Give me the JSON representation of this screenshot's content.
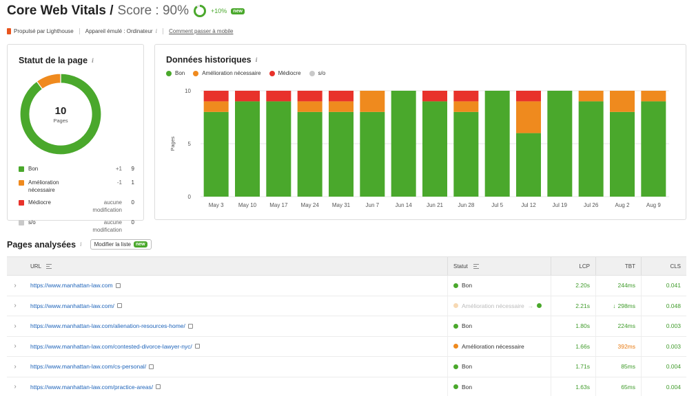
{
  "header": {
    "title": "Core Web Vitals /",
    "score_label": "Score : 90%",
    "score_value": 90,
    "delta": "+10%",
    "new_badge": "new"
  },
  "subbar": {
    "powered": "Propulsé par Lighthouse",
    "device": "Appareil émulé : Ordinateur",
    "info": "i",
    "mobile_link": "Comment passer à mobile"
  },
  "status_card": {
    "title": "Statut de la page",
    "info": "i",
    "total": "10",
    "total_label": "Pages",
    "legend": [
      {
        "label": "Bon",
        "delta": "+1",
        "count": "9",
        "color": "#4aa82c"
      },
      {
        "label": "Amélioration nécessaire",
        "delta": "-1",
        "count": "1",
        "color": "#ef8a1e"
      },
      {
        "label": "Médiocre",
        "delta": "aucune modification",
        "count": "0",
        "color": "#e8322b"
      },
      {
        "label": "s/o",
        "delta": "aucune modification",
        "count": "0",
        "color": "#c9c9c9"
      }
    ]
  },
  "history_card": {
    "title": "Données historiques",
    "info": "i",
    "legend": [
      {
        "label": "Bon",
        "color": "#4aa82c"
      },
      {
        "label": "Amélioration nécessaire",
        "color": "#ef8a1e"
      },
      {
        "label": "Médiocre",
        "color": "#e8322b"
      },
      {
        "label": "s/o",
        "color": "#c9c9c9"
      }
    ]
  },
  "chart_data": {
    "type": "bar",
    "stacked": true,
    "categories": [
      "May 3",
      "May 10",
      "May 17",
      "May 24",
      "May 31",
      "Jun 7",
      "Jun 14",
      "Jun 21",
      "Jun 28",
      "Jul 5",
      "Jul 12",
      "Jul 19",
      "Jul 26",
      "Aug 2",
      "Aug 9"
    ],
    "series": [
      {
        "name": "Bon",
        "color": "#4aa82c",
        "values": [
          8,
          9,
          9,
          8,
          8,
          8,
          10,
          9,
          8,
          10,
          6,
          10,
          9,
          8,
          9
        ]
      },
      {
        "name": "Amélioration nécessaire",
        "color": "#ef8a1e",
        "values": [
          1,
          0,
          0,
          1,
          1,
          2,
          0,
          0,
          1,
          0,
          3,
          0,
          1,
          2,
          1
        ]
      },
      {
        "name": "Médiocre",
        "color": "#e8322b",
        "values": [
          1,
          1,
          1,
          1,
          1,
          0,
          0,
          1,
          1,
          0,
          1,
          0,
          0,
          0,
          0
        ]
      }
    ],
    "ylabel": "Pages",
    "yticks": [
      "0",
      "5",
      "10"
    ],
    "ylim": [
      0,
      10
    ],
    "grid": true
  },
  "pages_section": {
    "title": "Pages analysées",
    "info": "i",
    "edit_button": "Modifier la liste",
    "new_badge": "new"
  },
  "table": {
    "headers": {
      "url": "URL",
      "status": "Statut",
      "lcp": "LCP",
      "tbt": "TBT",
      "cls": "CLS"
    },
    "rows": [
      {
        "url": "https://www.manhattan-law.com",
        "status": "Bon",
        "lcp": "2.20s",
        "tbt": "244ms",
        "cls": "0.041"
      },
      {
        "url": "https://www.manhattan-law.com/",
        "status": "Amélioration nécessaire",
        "lcp": "2.21s",
        "tbt": "298ms",
        "cls": "0.048"
      },
      {
        "url": "https://www.manhattan-law.com/alienation-resources-home/",
        "status": "Bon",
        "lcp": "1.80s",
        "tbt": "224ms",
        "cls": "0.003"
      },
      {
        "url": "https://www.manhattan-law.com/contested-divorce-lawyer-nyc/",
        "status": "Amélioration nécessaire",
        "lcp": "1.66s",
        "tbt": "392ms",
        "cls": "0.003"
      },
      {
        "url": "https://www.manhattan-law.com/cs-personal/",
        "status": "Bon",
        "lcp": "1.71s",
        "tbt": "85ms",
        "cls": "0.004"
      },
      {
        "url": "https://www.manhattan-law.com/practice-areas/",
        "status": "Bon",
        "lcp": "1.63s",
        "tbt": "65ms",
        "cls": "0.004"
      }
    ]
  }
}
